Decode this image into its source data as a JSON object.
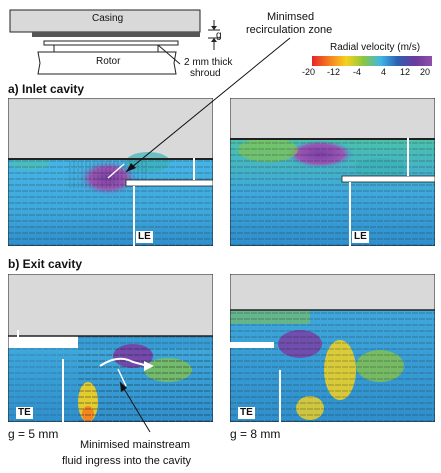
{
  "schematic": {
    "casing_label": "Casing",
    "rotor_label": "Rotor",
    "gap_label": "g",
    "shroud_label_line1": "2 mm thick",
    "shroud_label_line2": "shroud"
  },
  "annotations": {
    "recirc_line1": "Minimsed",
    "recirc_line2": "recirculation zone",
    "ingress_line1": "Minimised mainstream",
    "ingress_line2": "fluid ingress into the cavity"
  },
  "colorbar": {
    "title": "Radial velocity (m/s)",
    "ticks": [
      "-20",
      "-12",
      "-4",
      "4",
      "12",
      "20"
    ],
    "colors": [
      "#e8242a",
      "#f57e20",
      "#f6d21e",
      "#8cc63f",
      "#3fb6e8",
      "#2e5fb0",
      "#6a3a9e",
      "#8e4fa6"
    ]
  },
  "sections": {
    "inlet_title": "a) Inlet cavity",
    "exit_title": "b) Exit cavity"
  },
  "markers": {
    "leading_edge": "LE",
    "trailing_edge": "TE"
  },
  "gaps": {
    "left": "g = 5 mm",
    "right": "g = 8 mm"
  }
}
